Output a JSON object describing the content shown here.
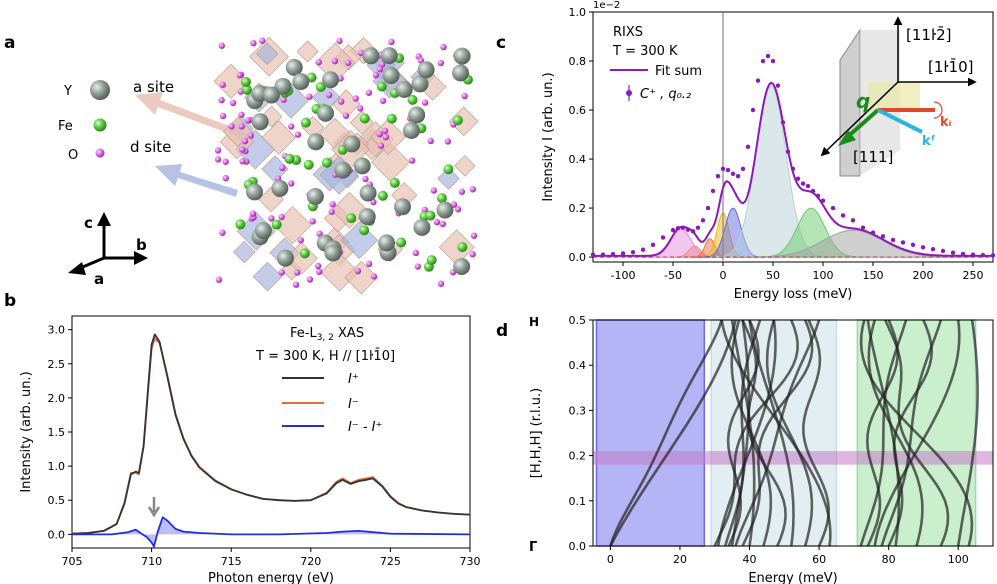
{
  "panels": {
    "a": {
      "label": "a",
      "legend": [
        {
          "element": "Y",
          "color": "#8a9a90"
        },
        {
          "element": "Fe",
          "color": "#55c93a"
        },
        {
          "element": "O",
          "color": "#e16ee6"
        }
      ],
      "site_labels": [
        "a site",
        "d site"
      ],
      "axes": [
        "c",
        "b",
        "a"
      ]
    },
    "b": {
      "label": "b",
      "title_line1": "Fe-L",
      "title_sub": "3, 2",
      "title_suffix": "  XAS",
      "title_line2": "T = 300 K, H // [1ŀ1̄0]",
      "xlabel": "Photon energy (eV)",
      "ylabel": "Intensity (arb. un.)"
    },
    "c": {
      "label": "c",
      "annot_line1": "RIXS",
      "annot_line2": "T = 300 K",
      "legend_fit": "Fit sum",
      "legend_data": "C⁺ , q₀.₂",
      "offset_text": "1e−2",
      "xlabel": "Energy loss (meV)",
      "ylabel": "Intensity I (arb. un.)",
      "inset_labels": [
        "[11ŀ2̄]",
        "[1ŀ1̄0]",
        "[111]",
        "q",
        "kᵢ",
        "kᶠ"
      ]
    },
    "d": {
      "label": "d",
      "xlabel": "Energy (meV)",
      "ylabel": "[H,H,H] (r.l.u.)",
      "y_top_label": "H",
      "y_bottom_label": "Γ"
    }
  },
  "chart_data": [
    {
      "id": "xas",
      "type": "line",
      "xlim": [
        705,
        730
      ],
      "ylim": [
        -0.2,
        3.2
      ],
      "xticks": [
        705,
        710,
        715,
        720,
        725,
        730
      ],
      "yticks": [
        0.0,
        0.5,
        1.0,
        1.5,
        2.0,
        2.5,
        3.0
      ],
      "series": [
        {
          "name": "I⁺",
          "color": "#333333",
          "x": [
            705,
            706,
            707,
            707.8,
            708.3,
            708.7,
            709.0,
            709.2,
            709.5,
            709.8,
            710.0,
            710.2,
            710.5,
            711.0,
            711.5,
            712.0,
            712.5,
            713.0,
            714.0,
            715.0,
            716.0,
            717.0,
            718.0,
            719.0,
            720.0,
            721.0,
            721.6,
            722.0,
            722.5,
            723.0,
            723.5,
            723.9,
            724.5,
            725.0,
            725.5,
            726.0,
            727.0,
            728.0,
            729.0,
            730.0
          ],
          "y": [
            0.01,
            0.02,
            0.05,
            0.15,
            0.45,
            0.88,
            0.92,
            0.9,
            1.3,
            2.2,
            2.78,
            2.93,
            2.82,
            2.3,
            1.75,
            1.4,
            1.15,
            0.98,
            0.78,
            0.66,
            0.58,
            0.52,
            0.5,
            0.49,
            0.5,
            0.6,
            0.75,
            0.8,
            0.74,
            0.78,
            0.8,
            0.82,
            0.7,
            0.55,
            0.45,
            0.4,
            0.35,
            0.32,
            0.3,
            0.29
          ]
        },
        {
          "name": "I⁻",
          "color": "#e8693a",
          "x": [
            705,
            706,
            707,
            707.8,
            708.3,
            708.7,
            709.0,
            709.2,
            709.5,
            709.8,
            710.0,
            710.2,
            710.5,
            711.0,
            711.5,
            712.0,
            712.5,
            713.0,
            714.0,
            715.0,
            716.0,
            717.0,
            718.0,
            719.0,
            720.0,
            721.0,
            721.6,
            722.0,
            722.5,
            723.0,
            723.5,
            723.9,
            724.5,
            725.0,
            725.5,
            726.0,
            727.0,
            728.0,
            729.0,
            730.0
          ],
          "y": [
            0.01,
            0.02,
            0.05,
            0.15,
            0.47,
            0.9,
            0.9,
            0.88,
            1.28,
            2.15,
            2.72,
            2.87,
            2.8,
            2.32,
            1.77,
            1.41,
            1.16,
            0.99,
            0.79,
            0.66,
            0.58,
            0.52,
            0.5,
            0.49,
            0.5,
            0.61,
            0.77,
            0.82,
            0.75,
            0.8,
            0.82,
            0.84,
            0.71,
            0.56,
            0.46,
            0.4,
            0.35,
            0.32,
            0.3,
            0.29
          ]
        },
        {
          "name": "I⁻ - I⁺",
          "color": "#1f2fe0",
          "x": [
            705,
            707.5,
            708.5,
            709.0,
            709.3,
            709.7,
            710.0,
            710.15,
            710.4,
            710.7,
            711.0,
            711.5,
            712.0,
            713.0,
            715.0,
            718.0,
            721.0,
            722.0,
            723.0,
            724.0,
            725.0,
            730.0
          ],
          "y": [
            0.0,
            0.0,
            0.03,
            0.07,
            0.02,
            -0.04,
            -0.12,
            -0.18,
            0.05,
            0.25,
            0.2,
            0.08,
            0.04,
            0.02,
            0.0,
            0.0,
            0.02,
            0.04,
            0.05,
            0.03,
            0.01,
            0.0
          ]
        }
      ]
    },
    {
      "id": "rixs",
      "type": "line",
      "xlim": [
        -130,
        270
      ],
      "ylim": [
        -0.02,
        1.0
      ],
      "xticks": [
        -100,
        -50,
        0,
        50,
        100,
        150,
        200,
        250
      ],
      "yticks": [
        0.0,
        0.2,
        0.4,
        0.6,
        0.8,
        1.0
      ],
      "y_scale_exponent": -2,
      "components": [
        {
          "center": -42,
          "amp": 0.115,
          "sigma": 10,
          "color": "#e58ee0"
        },
        {
          "center": -28,
          "amp": 0.045,
          "sigma": 6,
          "color": "#e29090"
        },
        {
          "center": -13,
          "amp": 0.075,
          "sigma": 5,
          "color": "#f07040"
        },
        {
          "center": 0,
          "amp": 0.18,
          "sigma": 6,
          "color": "#f2b51a"
        },
        {
          "center": 10,
          "amp": 0.2,
          "sigma": 8,
          "color": "#5f6ee6"
        },
        {
          "center": 48,
          "amp": 0.7,
          "sigma": 15,
          "color": "#b8d0d8"
        },
        {
          "center": 88,
          "amp": 0.2,
          "sigma": 14,
          "color": "#6bcc6b"
        },
        {
          "center": 130,
          "amp": 0.11,
          "sigma": 30,
          "color": "#a0a0a0"
        }
      ],
      "points": {
        "x": [
          -130,
          -120,
          -110,
          -100,
          -90,
          -80,
          -70,
          -60,
          -50,
          -45,
          -40,
          -35,
          -30,
          -25,
          -20,
          -15,
          -10,
          -5,
          0,
          5,
          10,
          15,
          20,
          25,
          30,
          35,
          40,
          45,
          50,
          55,
          60,
          65,
          70,
          75,
          80,
          85,
          90,
          95,
          100,
          110,
          120,
          130,
          140,
          150,
          160,
          170,
          180,
          190,
          200,
          210,
          220,
          230,
          240,
          250,
          260,
          270
        ],
        "y": [
          0.01,
          0.01,
          0.012,
          0.015,
          0.02,
          0.03,
          0.05,
          0.08,
          0.11,
          0.118,
          0.12,
          0.112,
          0.105,
          0.12,
          0.15,
          0.2,
          0.27,
          0.33,
          0.36,
          0.355,
          0.34,
          0.33,
          0.36,
          0.45,
          0.6,
          0.72,
          0.8,
          0.82,
          0.8,
          0.7,
          0.55,
          0.43,
          0.36,
          0.32,
          0.3,
          0.29,
          0.27,
          0.25,
          0.23,
          0.2,
          0.17,
          0.15,
          0.12,
          0.1,
          0.085,
          0.07,
          0.06,
          0.05,
          0.04,
          0.032,
          0.025,
          0.018,
          0.013,
          0.01,
          0.008,
          0.007
        ]
      }
    },
    {
      "id": "dispersion",
      "type": "line",
      "xlim": [
        -5,
        110
      ],
      "ylim": [
        0,
        0.5
      ],
      "xticks": [
        0,
        20,
        40,
        60,
        80,
        100
      ],
      "yticks": [
        0.0,
        0.1,
        0.2,
        0.3,
        0.4,
        0.5
      ],
      "bands": [
        {
          "range": [
            -4,
            27
          ],
          "color": "#6a6aee"
        },
        {
          "range": [
            29,
            65
          ],
          "color": "#c6dde3"
        },
        {
          "range": [
            71,
            105
          ],
          "color": "#94e09a"
        }
      ],
      "q_highlight": {
        "range": [
          0.18,
          0.21
        ],
        "color": "#c47cc8"
      },
      "curves": [
        {
          "start": 0,
          "end": 36
        },
        {
          "start": 0,
          "end": 32
        },
        {
          "start": 30,
          "end": 52
        },
        {
          "start": 31,
          "end": 47
        },
        {
          "start": 33,
          "end": 43
        },
        {
          "start": 34,
          "end": 40
        },
        {
          "start": 35,
          "end": 38
        },
        {
          "start": 36,
          "end": 60
        },
        {
          "start": 38,
          "end": 56
        },
        {
          "start": 40,
          "end": 35
        },
        {
          "start": 44,
          "end": 37
        },
        {
          "start": 48,
          "end": 38
        },
        {
          "start": 52,
          "end": 40
        },
        {
          "start": 56,
          "end": 47
        },
        {
          "start": 60,
          "end": 57
        },
        {
          "start": 63,
          "end": 32
        },
        {
          "start": 72,
          "end": 85
        },
        {
          "start": 74,
          "end": 80
        },
        {
          "start": 76,
          "end": 100
        },
        {
          "start": 78,
          "end": 95
        },
        {
          "start": 80,
          "end": 90
        },
        {
          "start": 82,
          "end": 74
        },
        {
          "start": 88,
          "end": 76
        },
        {
          "start": 95,
          "end": 79
        },
        {
          "start": 100,
          "end": 104
        },
        {
          "start": 103,
          "end": 73
        }
      ]
    }
  ]
}
